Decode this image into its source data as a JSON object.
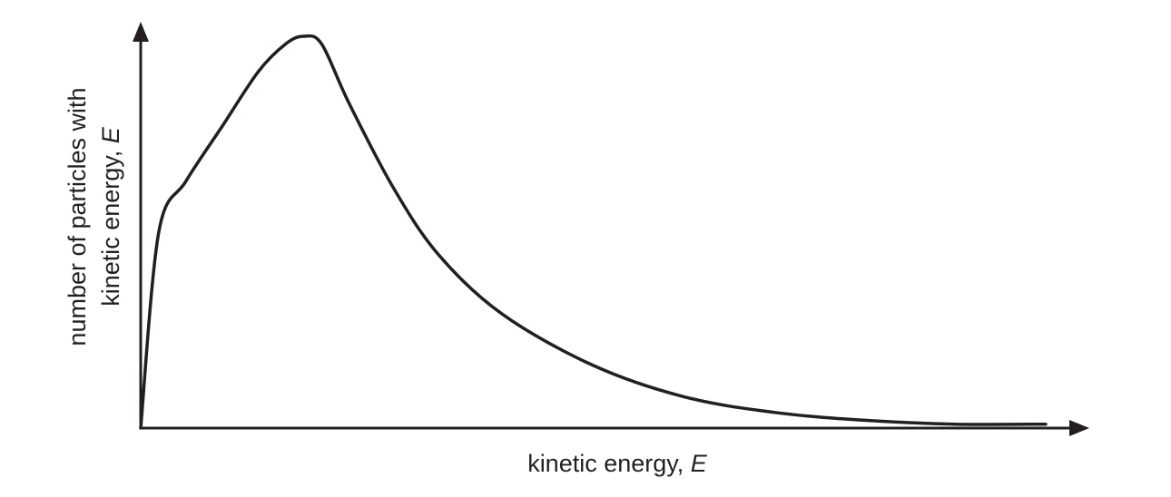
{
  "chart_data": {
    "type": "line",
    "title": "",
    "xlabel": "kinetic energy, E",
    "ylabel": "number of particles with kinetic energy, E",
    "xlabel_parts": {
      "text": "kinetic energy, ",
      "var": "E"
    },
    "ylabel_lines": [
      {
        "text": "number of particles with",
        "var": ""
      },
      {
        "text": "kinetic energy, ",
        "var": "E"
      }
    ],
    "grid": false,
    "ticks": false,
    "xlim": [
      0,
      1
    ],
    "ylim": [
      0,
      1
    ],
    "series": [
      {
        "x": [
          0,
          0.02,
          0.05,
          0.09,
          0.13,
          0.16,
          0.18,
          0.2,
          0.23,
          0.28,
          0.33,
          0.4,
          0.5,
          0.6,
          0.7,
          0.8,
          0.9,
          1.0
        ],
        "y": [
          0,
          0.5,
          0.63,
          0.77,
          0.91,
          0.98,
          1.0,
          0.98,
          0.83,
          0.61,
          0.44,
          0.29,
          0.16,
          0.08,
          0.04,
          0.02,
          0.01,
          0.01
        ]
      }
    ],
    "colors": {
      "ink": "#231f20"
    }
  }
}
